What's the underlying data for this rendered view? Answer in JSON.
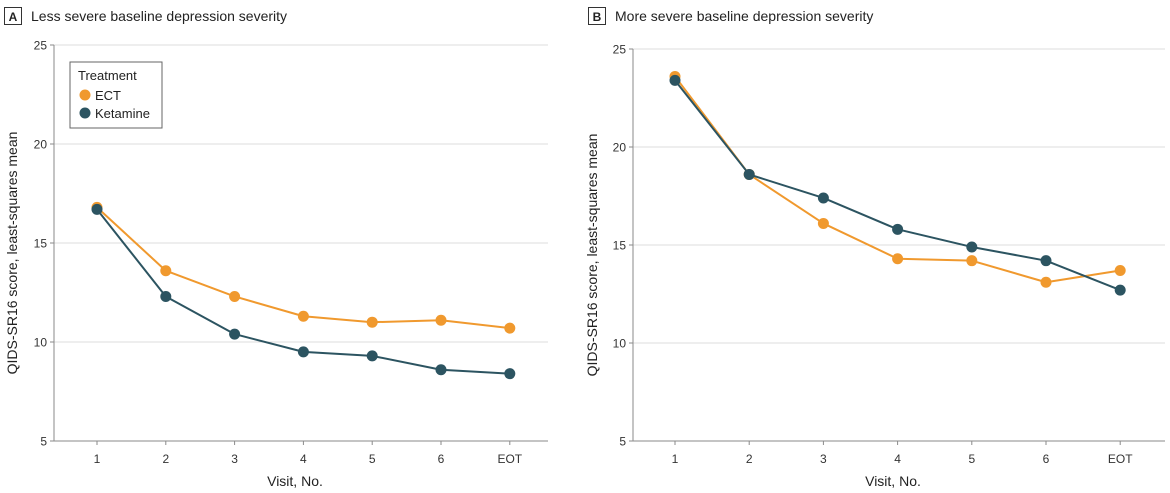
{
  "colors": {
    "ECT": "#f0992e",
    "Ketamine": "#2c5461",
    "gridline": "#dcdcdc",
    "axis": "#8a8a8a"
  },
  "legend": {
    "title": "Treatment",
    "placement": "top-left",
    "entries": [
      "ECT",
      "Ketamine"
    ]
  },
  "chart_data": [
    {
      "type": "line",
      "panel_letter": "A",
      "title": "Less severe baseline depression severity",
      "xlabel": "Visit, No.",
      "ylabel": "QIDS-SR16 score, least-squares mean",
      "categories": [
        "1",
        "2",
        "3",
        "4",
        "5",
        "6",
        "EOT"
      ],
      "ylim": [
        5,
        25
      ],
      "yticks": [
        5,
        10,
        15,
        20,
        25
      ],
      "grid": "horizontal",
      "legend_shown": true,
      "series": [
        {
          "name": "ECT",
          "values": [
            16.8,
            13.6,
            12.3,
            11.3,
            11.0,
            11.1,
            10.7
          ]
        },
        {
          "name": "Ketamine",
          "values": [
            16.7,
            12.3,
            10.4,
            9.5,
            9.3,
            8.6,
            8.4
          ]
        }
      ]
    },
    {
      "type": "line",
      "panel_letter": "B",
      "title": "More severe baseline depression severity",
      "xlabel": "Visit, No.",
      "ylabel": "QIDS-SR16 score, least-squares mean",
      "categories": [
        "1",
        "2",
        "3",
        "4",
        "5",
        "6",
        "EOT"
      ],
      "ylim": [
        5,
        25
      ],
      "yticks": [
        5,
        10,
        15,
        20,
        25
      ],
      "grid": "horizontal",
      "legend_shown": false,
      "series": [
        {
          "name": "ECT",
          "values": [
            23.6,
            18.6,
            16.1,
            14.3,
            14.2,
            13.1,
            13.7
          ]
        },
        {
          "name": "Ketamine",
          "values": [
            23.4,
            18.6,
            17.4,
            15.8,
            14.9,
            14.2,
            12.7
          ]
        }
      ]
    }
  ]
}
